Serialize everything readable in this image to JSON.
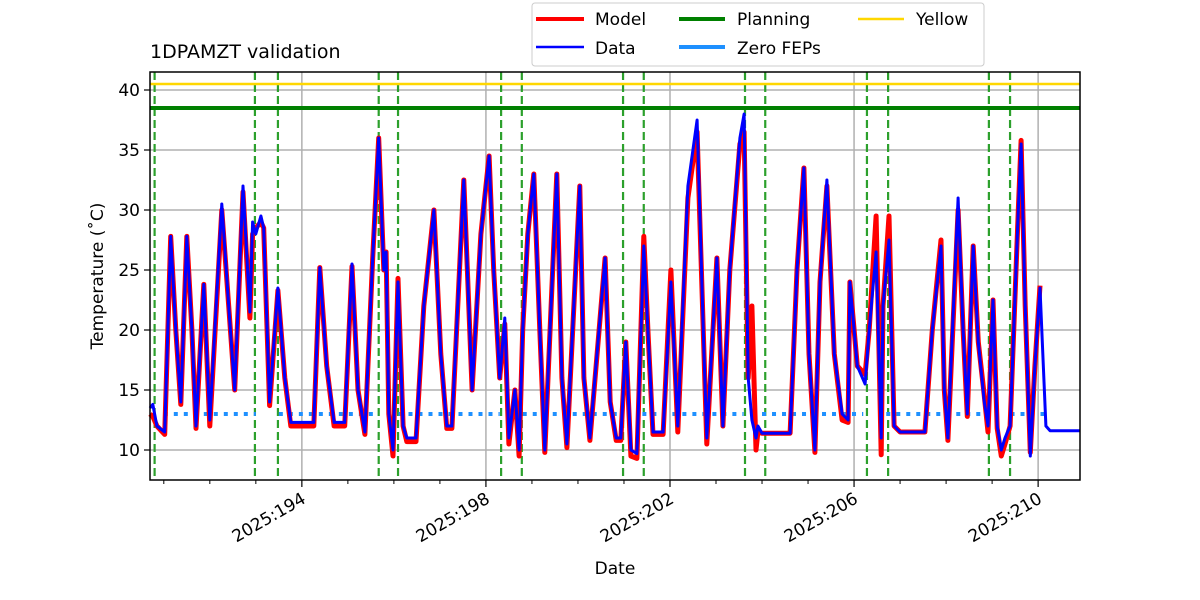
{
  "chart_data": {
    "type": "line",
    "title": "1DPAMZT validation",
    "xlabel": "Date",
    "ylabel": "Temperature ($^\\circ$C)",
    "ylabel_display": "Temperature (˚C)",
    "xlim": [
      190.7,
      210.91
    ],
    "ylim": [
      7.5,
      41.5
    ],
    "grid": true,
    "legend_placement": "top-center, outside, 3 columns",
    "x_ticks": [
      194,
      198,
      202,
      206,
      210
    ],
    "x_tick_labels": [
      "2025:194",
      "2025:198",
      "2025:202",
      "2025:206",
      "2025:210"
    ],
    "y_ticks": [
      10,
      15,
      20,
      25,
      30,
      35,
      40
    ],
    "y_tick_labels": [
      "10",
      "15",
      "20",
      "25",
      "30",
      "35",
      "40"
    ],
    "legend": [
      {
        "label": "Model",
        "color": "#ff0000"
      },
      {
        "label": "Planning",
        "color": "#008000"
      },
      {
        "label": "Yellow",
        "color": "#ffd700"
      },
      {
        "label": "Data",
        "color": "#0000ff"
      },
      {
        "label": "Zero FEPs",
        "color": "#1e90ff"
      }
    ],
    "hlines": {
      "planning": 38.5,
      "yellow": 40.5
    },
    "zero_feps": {
      "value": 13.0,
      "segments": [
        [
          191.0,
          193.0
        ],
        [
          193.5,
          195.6
        ],
        [
          196.1,
          198.3
        ],
        [
          198.8,
          200.9
        ],
        [
          201.4,
          203.6
        ],
        [
          204.0,
          206.2
        ],
        [
          206.7,
          208.9
        ],
        [
          209.4,
          210.2
        ]
      ]
    },
    "vlines_dashed": [
      190.8,
      192.98,
      193.48,
      195.67,
      196.09,
      198.33,
      198.78,
      200.98,
      201.43,
      203.63,
      204.07,
      206.28,
      206.74,
      208.93,
      209.39
    ],
    "x": [
      190.7,
      190.76,
      190.85,
      191.02,
      191.15,
      191.26,
      191.37,
      191.5,
      191.61,
      191.7,
      191.87,
      192.0,
      192.26,
      192.41,
      192.54,
      192.72,
      192.87,
      192.93,
      193.0,
      193.11,
      193.17,
      193.3,
      193.48,
      193.63,
      193.76,
      194.26,
      194.39,
      194.54,
      194.7,
      194.93,
      195.09,
      195.22,
      195.37,
      195.54,
      195.67,
      195.78,
      195.83,
      195.89,
      195.98,
      196.09,
      196.2,
      196.28,
      196.48,
      196.65,
      196.87,
      197.02,
      197.15,
      197.26,
      197.52,
      197.7,
      197.89,
      198.07,
      198.17,
      198.3,
      198.41,
      198.5,
      198.63,
      198.72,
      198.8,
      198.91,
      199.04,
      199.17,
      199.28,
      199.54,
      199.65,
      199.76,
      200.04,
      200.13,
      200.26,
      200.59,
      200.7,
      200.83,
      200.93,
      201.04,
      201.15,
      201.28,
      201.43,
      201.52,
      201.63,
      201.85,
      202.02,
      202.17,
      202.39,
      202.59,
      202.74,
      202.8,
      203.02,
      203.15,
      203.3,
      203.52,
      203.61,
      203.7,
      203.78,
      203.87,
      203.91,
      204.0,
      204.61,
      204.76,
      204.91,
      205.02,
      205.15,
      205.26,
      205.41,
      205.57,
      205.74,
      205.87,
      205.91,
      206.07,
      206.24,
      206.33,
      206.48,
      206.59,
      206.63,
      206.76,
      206.87,
      207.0,
      207.54,
      207.7,
      207.89,
      207.96,
      208.04,
      208.26,
      208.37,
      208.46,
      208.59,
      208.7,
      208.83,
      208.91,
      209.02,
      209.11,
      209.2,
      209.28,
      209.39,
      209.57,
      209.63,
      209.72,
      209.83,
      209.93,
      210.04,
      210.17,
      210.26,
      210.91
    ],
    "series": [
      {
        "name": "Model",
        "values": [
          13.0,
          12.8,
          12.0,
          11.3,
          27.8,
          20,
          13.8,
          27.8,
          20,
          11.8,
          23.8,
          12.0,
          30.0,
          22,
          15,
          31.5,
          21,
          28,
          28.5,
          29.0,
          28.5,
          13.7,
          23.3,
          16,
          12.0,
          12.0,
          25.2,
          17,
          12.0,
          12.0,
          25.3,
          15,
          11.3,
          26,
          36,
          25,
          26.5,
          13,
          9.5,
          24.3,
          12,
          10.7,
          10.7,
          22,
          30,
          18,
          11.8,
          11.8,
          32.5,
          15,
          28,
          34.5,
          25,
          16,
          20.5,
          10.5,
          15,
          9.5,
          20,
          28,
          33,
          20,
          9.8,
          33,
          16,
          10.2,
          32,
          16,
          10.8,
          26,
          14,
          10.8,
          10.8,
          19,
          9.5,
          9.3,
          27.8,
          20,
          11.3,
          11.3,
          25,
          11.5,
          31,
          36.5,
          18,
          10.5,
          26,
          12,
          25,
          35.5,
          36.5,
          16,
          22,
          10,
          11.5,
          11.4,
          11.4,
          25,
          33.5,
          18,
          9.8,
          24,
          32,
          18,
          12.5,
          12.3,
          24,
          17,
          16.3,
          20,
          29.5,
          9.6,
          22,
          29.5,
          12,
          11.5,
          11.5,
          20,
          27.5,
          15,
          10.8,
          30,
          20,
          12.8,
          27,
          19,
          14.5,
          11.5,
          22.5,
          11.8,
          9.5,
          10.5,
          12,
          30,
          35.8,
          22,
          9.8,
          17,
          23.7,
          null,
          null,
          null
        ]
      },
      {
        "name": "Data",
        "values": [
          13.5,
          13.8,
          12.0,
          11.5,
          27.8,
          20,
          14.0,
          27.8,
          20,
          12.0,
          23.8,
          12.5,
          30.5,
          22,
          15,
          32,
          21.5,
          29,
          28,
          29.5,
          28.5,
          14,
          23.5,
          16,
          12.3,
          12.3,
          25.2,
          17,
          12.3,
          12.3,
          25.5,
          15,
          11.5,
          26,
          36,
          25,
          26.5,
          13,
          10,
          24,
          12,
          11,
          11,
          22,
          30,
          18,
          12,
          12,
          32.5,
          15,
          28,
          34.5,
          25,
          16,
          21,
          11,
          15,
          10,
          20,
          28,
          33,
          20,
          10,
          33,
          16,
          10.5,
          32,
          16,
          11,
          26,
          14,
          11,
          11,
          19,
          10,
          9.7,
          27,
          20,
          11.5,
          11.5,
          24,
          12,
          32,
          37.5,
          18,
          11,
          26,
          12,
          25,
          36,
          38,
          16,
          12.5,
          11,
          12,
          11.4,
          11.4,
          25,
          33.5,
          18,
          10,
          24,
          32.5,
          18,
          13,
          12.5,
          24,
          17,
          15.5,
          20,
          26.5,
          11,
          22,
          27.5,
          12,
          11.5,
          11.5,
          20,
          27,
          15,
          11,
          31,
          20,
          13,
          27,
          19,
          14,
          12,
          22.5,
          12,
          10,
          11,
          12,
          30,
          35.5,
          22,
          9.5,
          17,
          23.5,
          12,
          11.6,
          11.6
        ]
      }
    ]
  }
}
